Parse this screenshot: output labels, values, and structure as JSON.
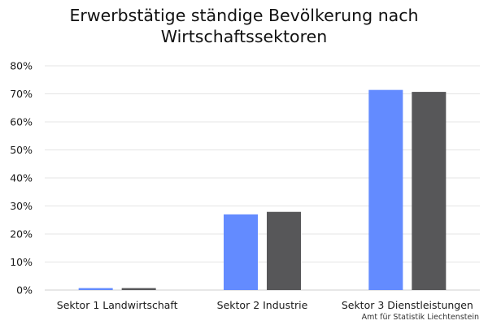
{
  "chart_data": {
    "type": "bar",
    "title_lines": [
      "Erwerbstätige ständige Bevölkerung nach",
      "Wirtschaftssektoren"
    ],
    "categories": [
      "Sektor 1 Landwirtschaft",
      "Sektor 2 Industrie",
      "Sektor 3 Dienstleistungen"
    ],
    "series": [
      {
        "color": "#638bff",
        "values": [
          0.7,
          27.0,
          71.4
        ]
      },
      {
        "color": "#575759",
        "values": [
          0.7,
          27.9,
          70.7
        ]
      }
    ],
    "ylim": [
      0,
      80
    ],
    "yticks": [
      0,
      10,
      20,
      30,
      40,
      50,
      60,
      70,
      80
    ],
    "ytick_labels": [
      "0%",
      "10%",
      "20%",
      "30%",
      "40%",
      "50%",
      "60%",
      "70%",
      "80%"
    ],
    "grid": true,
    "legend": "none"
  },
  "source": {
    "credit": "Amt für Statistik Liechtenstein"
  },
  "colors": {
    "gridline": "#e4e4e4",
    "baseline": "#cfcfcf",
    "tick_text": "#1a1a1a"
  }
}
